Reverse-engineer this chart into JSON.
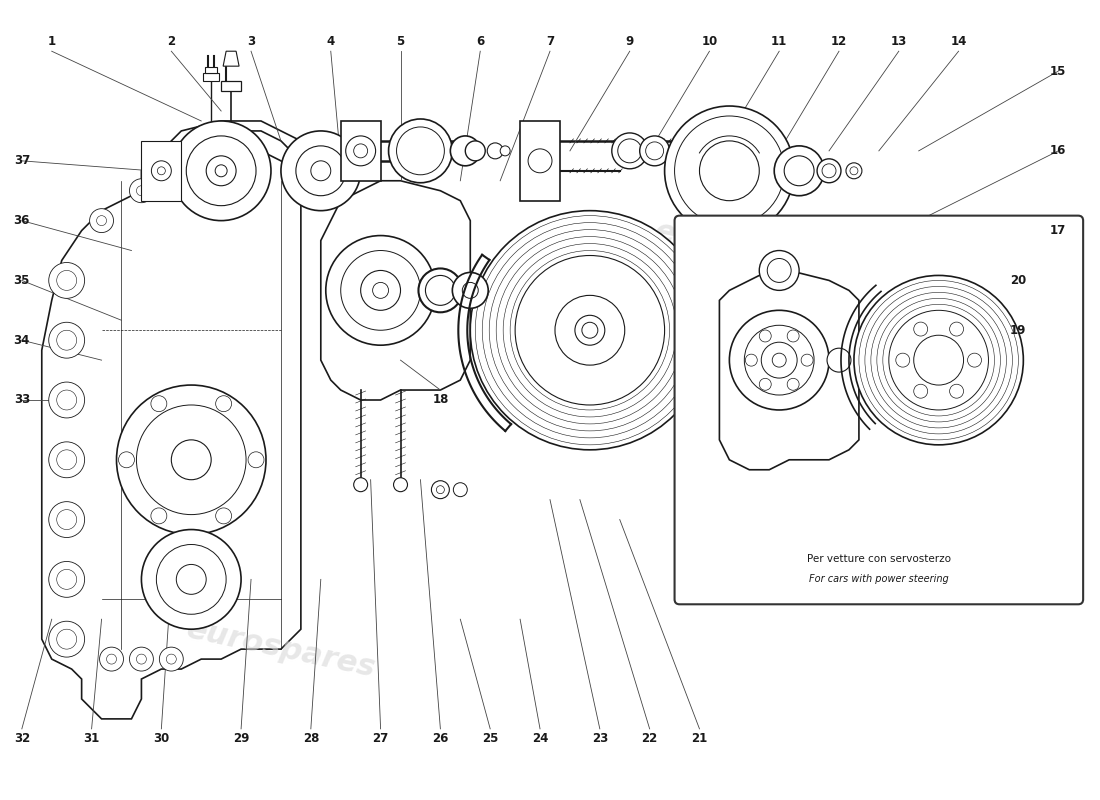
{
  "background_color": "#ffffff",
  "line_color": "#1a1a1a",
  "leader_color": "#333333",
  "watermark_text": "eurospares",
  "watermark_color": "#d8d8d8",
  "inset_text1": "Per vetture con servosterzo",
  "inset_text2": "For cars with power steering",
  "figsize": [
    11.0,
    8.0
  ],
  "dpi": 100,
  "xlim": [
    0,
    110
  ],
  "ylim": [
    0,
    80
  ],
  "top_labels": [
    [
      1,
      5,
      76,
      20,
      68
    ],
    [
      2,
      17,
      76,
      22,
      69
    ],
    [
      3,
      25,
      76,
      28,
      66
    ],
    [
      4,
      33,
      76,
      34,
      64
    ],
    [
      5,
      40,
      76,
      40,
      62
    ],
    [
      6,
      48,
      76,
      46,
      62
    ],
    [
      7,
      55,
      76,
      50,
      62
    ],
    [
      9,
      63,
      76,
      57,
      65
    ],
    [
      10,
      71,
      76,
      65,
      65
    ],
    [
      11,
      78,
      76,
      72,
      65
    ],
    [
      12,
      84,
      76,
      78,
      65
    ],
    [
      13,
      90,
      76,
      83,
      65
    ],
    [
      14,
      96,
      76,
      88,
      65
    ]
  ],
  "right_labels": [
    [
      15,
      106,
      73,
      92,
      65
    ],
    [
      16,
      106,
      65,
      92,
      58
    ],
    [
      17,
      106,
      57,
      92,
      52
    ]
  ],
  "left_labels": [
    [
      37,
      2,
      64,
      15,
      63
    ],
    [
      36,
      2,
      58,
      13,
      55
    ],
    [
      35,
      2,
      52,
      12,
      48
    ],
    [
      34,
      2,
      46,
      10,
      44
    ],
    [
      33,
      2,
      40,
      7,
      40
    ]
  ],
  "bottom_labels": [
    [
      32,
      2,
      6,
      5,
      18
    ],
    [
      31,
      9,
      6,
      10,
      18
    ],
    [
      30,
      16,
      6,
      17,
      22
    ],
    [
      29,
      24,
      6,
      25,
      22
    ],
    [
      28,
      31,
      6,
      32,
      22
    ],
    [
      27,
      38,
      6,
      37,
      32
    ],
    [
      26,
      44,
      6,
      42,
      32
    ],
    [
      25,
      49,
      6,
      46,
      18
    ],
    [
      24,
      54,
      6,
      52,
      18
    ],
    [
      23,
      60,
      6,
      55,
      30
    ],
    [
      22,
      65,
      6,
      58,
      30
    ],
    [
      21,
      70,
      6,
      62,
      28
    ],
    [
      18,
      44,
      40,
      40,
      44
    ]
  ],
  "inset_labels": [
    [
      20,
      102,
      52,
      93,
      54
    ],
    [
      19,
      102,
      47,
      93,
      48
    ]
  ]
}
